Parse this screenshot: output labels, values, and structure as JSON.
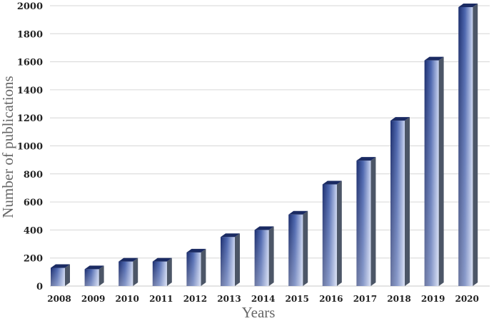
{
  "chart_data": {
    "type": "bar",
    "categories": [
      "2008",
      "2009",
      "2010",
      "2011",
      "2012",
      "2013",
      "2014",
      "2015",
      "2016",
      "2017",
      "2018",
      "2019",
      "2020"
    ],
    "values": [
      130,
      120,
      175,
      175,
      240,
      350,
      400,
      510,
      725,
      895,
      1180,
      1610,
      1990
    ],
    "xlabel": "Years",
    "ylabel": "Number of publications",
    "ylim": [
      0,
      2000
    ],
    "yticks": [
      0,
      200,
      400,
      600,
      800,
      1000,
      1200,
      1400,
      1600,
      1800,
      2000
    ],
    "grid": true,
    "legend": "none",
    "colors": {
      "bar_dark": "#1c2e6e",
      "bar_mid": "#4a64ad",
      "bar_light": "#c7d2ef",
      "bar_top": "#1a2a62",
      "bar_side": "#4c5667"
    }
  }
}
